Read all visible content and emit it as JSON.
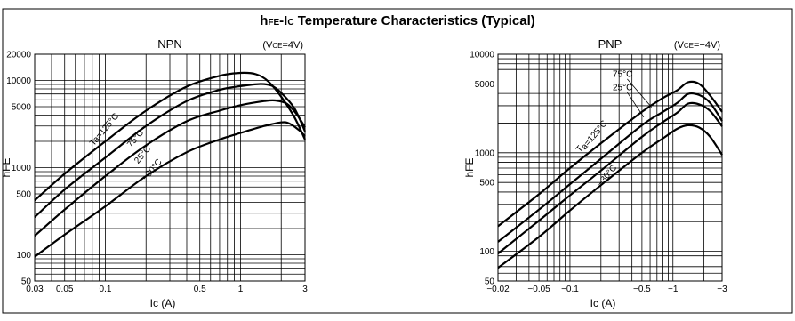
{
  "title": {
    "main_sub": "FE",
    "main_mid": "-I",
    "main_mid_sub": "C",
    "main_rest": " Temperature Characteristics (Typical)",
    "main_h": "h"
  },
  "chart_data": [
    {
      "type": "line",
      "title": "NPN",
      "condition_prefix": "(V",
      "condition_sub": "CE",
      "condition_suffix": "=4V)",
      "xlabel": "Ic  (A)",
      "ylabel": "hFE",
      "x_scale": "log",
      "y_scale": "log",
      "xlim": [
        0.03,
        3
      ],
      "ylim": [
        50,
        20000
      ],
      "x_ticks": [
        {
          "v": 0.03,
          "label": "0.03"
        },
        {
          "v": 0.05,
          "label": "0.05"
        },
        {
          "v": 0.1,
          "label": "0.1"
        },
        {
          "v": 0.5,
          "label": "0.5"
        },
        {
          "v": 1,
          "label": "1"
        },
        {
          "v": 3,
          "label": "3"
        }
      ],
      "y_ticks": [
        {
          "v": 50,
          "label": "50"
        },
        {
          "v": 100,
          "label": "100"
        },
        {
          "v": 500,
          "label": "500"
        },
        {
          "v": 1000,
          "label": "1000"
        },
        {
          "v": 5000,
          "label": "5000"
        },
        {
          "v": 10000,
          "label": "10000"
        },
        {
          "v": 20000,
          "label": "20000"
        }
      ],
      "grid": true,
      "series": [
        {
          "name": "Ta=125°C",
          "x": [
            0.03,
            0.05,
            0.1,
            0.2,
            0.4,
            0.7,
            1.0,
            1.3,
            1.6,
            2.0,
            2.5,
            3.0
          ],
          "y": [
            420,
            850,
            2000,
            4500,
            8500,
            11300,
            12200,
            11800,
            9800,
            6500,
            3800,
            2100
          ]
        },
        {
          "name": "75°C",
          "x": [
            0.03,
            0.05,
            0.1,
            0.2,
            0.4,
            0.7,
            1.0,
            1.4,
            1.7,
            2.0,
            2.5,
            3.0
          ],
          "y": [
            270,
            560,
            1300,
            3000,
            5800,
            7800,
            8600,
            9100,
            8700,
            7200,
            4800,
            2600
          ]
        },
        {
          "name": "25°C",
          "x": [
            0.03,
            0.05,
            0.1,
            0.2,
            0.4,
            0.7,
            1.0,
            1.5,
            1.8,
            2.2,
            2.6,
            3.0
          ],
          "y": [
            165,
            330,
            800,
            1800,
            3400,
            4500,
            5200,
            5800,
            5900,
            5400,
            4100,
            2900
          ]
        },
        {
          "name": "−30°C",
          "x": [
            0.03,
            0.05,
            0.1,
            0.2,
            0.4,
            0.7,
            1.0,
            1.5,
            2.0,
            2.3,
            2.7,
            3.0
          ],
          "y": [
            95,
            170,
            360,
            800,
            1500,
            2100,
            2500,
            3000,
            3300,
            3200,
            2700,
            2300
          ]
        }
      ],
      "labels": [
        {
          "text": "Ta=125°C",
          "sub": "a",
          "x": 0.082,
          "y": 1750
        },
        {
          "text": "75°C",
          "x": 0.155,
          "y": 1680
        },
        {
          "text": "25°C",
          "x": 0.175,
          "y": 1100
        },
        {
          "text": "−30°C",
          "x": 0.2,
          "y": 700
        }
      ]
    },
    {
      "type": "line",
      "title": "PNP",
      "condition_prefix": "(V",
      "condition_sub": "CE",
      "condition_suffix": "=−4V)",
      "xlabel": "Ic  (A)",
      "ylabel": "hFE",
      "x_scale": "log",
      "y_scale": "log",
      "xlim": [
        0.02,
        3
      ],
      "ylim": [
        50,
        10000
      ],
      "x_ticks": [
        {
          "v": 0.02,
          "label": "−0.02"
        },
        {
          "v": 0.05,
          "label": "−0.05"
        },
        {
          "v": 0.1,
          "label": "−0.1"
        },
        {
          "v": 0.5,
          "label": "−0.5"
        },
        {
          "v": 1,
          "label": "−1"
        },
        {
          "v": 3,
          "label": "−3"
        }
      ],
      "y_ticks": [
        {
          "v": 50,
          "label": "50"
        },
        {
          "v": 100,
          "label": "100"
        },
        {
          "v": 500,
          "label": "500"
        },
        {
          "v": 1000,
          "label": "1000"
        },
        {
          "v": 5000,
          "label": "5000"
        },
        {
          "v": 10000,
          "label": "10000"
        }
      ],
      "grid": true,
      "series": [
        {
          "name": "Ta=125°C",
          "x": [
            0.02,
            0.05,
            0.1,
            0.2,
            0.5,
            0.8,
            1.1,
            1.4,
            1.8,
            2.3,
            3.0
          ],
          "y": [
            180,
            380,
            700,
            1250,
            2600,
            3600,
            4300,
            5200,
            5000,
            3800,
            2600
          ]
        },
        {
          "name": "75°C",
          "x": [
            0.02,
            0.05,
            0.1,
            0.2,
            0.5,
            0.8,
            1.1,
            1.4,
            1.8,
            2.3,
            3.0
          ],
          "y": [
            125,
            265,
            480,
            870,
            1900,
            2600,
            3200,
            3950,
            3850,
            3200,
            2100
          ]
        },
        {
          "name": "25°C",
          "x": [
            0.02,
            0.05,
            0.1,
            0.2,
            0.5,
            0.8,
            1.1,
            1.4,
            1.8,
            2.3,
            3.0
          ],
          "y": [
            95,
            205,
            370,
            660,
            1450,
            2050,
            2550,
            3150,
            3100,
            2650,
            1850
          ]
        },
        {
          "name": "−30°C",
          "x": [
            0.02,
            0.05,
            0.1,
            0.2,
            0.5,
            0.8,
            1.1,
            1.4,
            1.8,
            2.3,
            3.0
          ],
          "y": [
            68,
            140,
            260,
            470,
            1000,
            1400,
            1750,
            1900,
            1800,
            1450,
            950
          ]
        }
      ],
      "labels": [
        {
          "text": "T",
          "x": 0.125,
          "y": 1000
        },
        {
          "text": "a=125°C",
          "x": 0.14,
          "y": 1060
        },
        {
          "text": "−30°C",
          "x": 0.2,
          "y": 450
        },
        {
          "text": "75°C",
          "x": 0.26,
          "y": 5900
        },
        {
          "text": "25°C",
          "x": 0.26,
          "y": 4300
        }
      ]
    }
  ]
}
